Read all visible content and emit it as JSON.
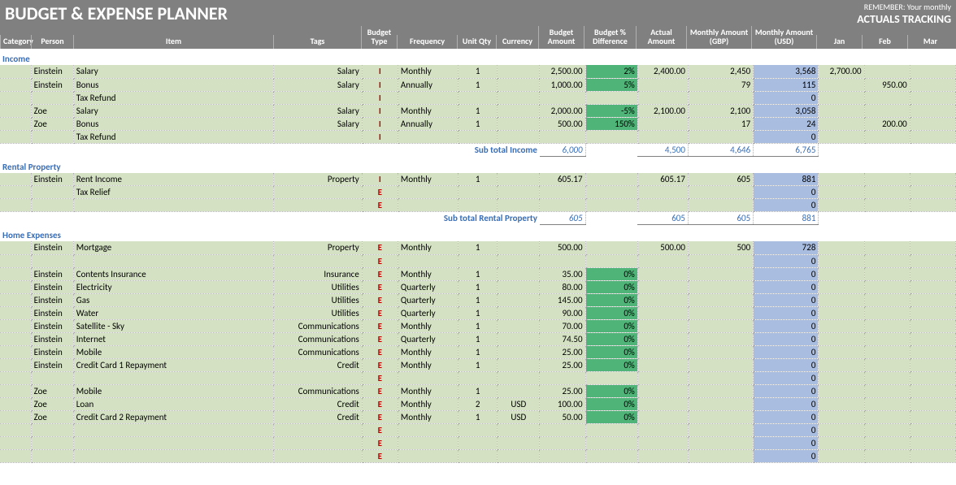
{
  "title": "BUDGET & EXPENSE PLANNER",
  "remember_line1": "REMEMBER: Your monthly",
  "remember_line2": "ACTUALS TRACKING",
  "columns": {
    "category": "Category",
    "person": "Person",
    "item": "Item",
    "tags": "Tags",
    "budget_type": "Budget Type",
    "frequency": "Frequency",
    "unit_qty": "Unit Qty",
    "currency": "Currency",
    "budget_amount": "Budget Amount",
    "budget_pct_diff": "Budget % Difference",
    "actual_amount": "Actual Amount",
    "monthly_gbp": "Monthly Amount (GBP)",
    "monthly_usd": "Monthly Amount (USD)",
    "jan": "Jan",
    "feb": "Feb",
    "mar": "Mar"
  },
  "col_widths": {
    "category": 38,
    "person": 52,
    "item": 246,
    "tags": 108,
    "budget_type": 44,
    "frequency": 74,
    "unit_qty": 48,
    "currency": 52,
    "budget_amount": 56,
    "budget_pct_diff": 64,
    "actual_amount": 62,
    "monthly_gbp": 80,
    "monthly_usd": 80,
    "jan": 56,
    "feb": 56,
    "mar": 56
  },
  "colors": {
    "header_bg": "#808080",
    "header_text": "#ffffff",
    "section_title": "#3a6fb7",
    "row_green": "#d4e2c3",
    "diff_green": "#4eb478",
    "usd_blue": "#a8bde0",
    "btype_red": "#c00000",
    "border_dotted": "#b0b0b0"
  },
  "sections": [
    {
      "title": "Income",
      "rows": [
        {
          "person": "Einstein",
          "item": "Salary",
          "tags": "Salary",
          "btype": "I",
          "freq": "Monthly",
          "qty": "1",
          "curr": "",
          "budget": "2,500.00",
          "diff": "2%",
          "actual": "2,400.00",
          "gbp": "2,450",
          "usd": "3,568",
          "jan": "2,700.00",
          "feb": "",
          "mar": ""
        },
        {
          "person": "Einstein",
          "item": "Bonus",
          "tags": "Salary",
          "btype": "I",
          "freq": "Annually",
          "qty": "1",
          "curr": "",
          "budget": "1,000.00",
          "diff": "5%",
          "actual": "",
          "gbp": "79",
          "usd": "115",
          "jan": "",
          "feb": "950.00",
          "mar": ""
        },
        {
          "person": "",
          "item": "Tax Refund",
          "tags": "",
          "btype": "I",
          "freq": "",
          "qty": "",
          "curr": "",
          "budget": "",
          "diff": "",
          "actual": "",
          "gbp": "",
          "usd": "0",
          "jan": "",
          "feb": "",
          "mar": ""
        },
        {
          "person": "Zoe",
          "item": "Salary",
          "tags": "Salary",
          "btype": "I",
          "freq": "Monthly",
          "qty": "1",
          "curr": "",
          "budget": "2,000.00",
          "diff": "-5%",
          "actual": "2,100.00",
          "gbp": "2,100",
          "usd": "3,058",
          "jan": "",
          "feb": "",
          "mar": ""
        },
        {
          "person": "Zoe",
          "item": "Bonus",
          "tags": "Salary",
          "btype": "I",
          "freq": "Annually",
          "qty": "1",
          "curr": "",
          "budget": "500.00",
          "diff": "150%",
          "actual": "",
          "gbp": "17",
          "usd": "24",
          "jan": "",
          "feb": "200.00",
          "mar": ""
        },
        {
          "person": "",
          "item": "Tax Refund",
          "tags": "",
          "btype": "I",
          "freq": "",
          "qty": "",
          "curr": "",
          "budget": "",
          "diff": "",
          "actual": "",
          "gbp": "",
          "usd": "0",
          "jan": "",
          "feb": "",
          "mar": ""
        }
      ],
      "subtotal": {
        "label": "Sub total Income",
        "budget": "6,000",
        "actual": "4,500",
        "gbp": "4,646",
        "usd": "6,765"
      }
    },
    {
      "title": "Rental Property",
      "rows": [
        {
          "person": "Einstein",
          "item": "Rent Income",
          "tags": "Property",
          "btype": "I",
          "freq": "Monthly",
          "qty": "1",
          "curr": "",
          "budget": "605.17",
          "diff": "",
          "actual": "605.17",
          "gbp": "605",
          "usd": "881",
          "jan": "",
          "feb": "",
          "mar": ""
        },
        {
          "person": "",
          "item": "Tax Relief",
          "tags": "",
          "btype": "E",
          "freq": "",
          "qty": "",
          "curr": "",
          "budget": "",
          "diff": "",
          "actual": "",
          "gbp": "",
          "usd": "0",
          "jan": "",
          "feb": "",
          "mar": ""
        },
        {
          "person": "",
          "item": "",
          "tags": "",
          "btype": "E",
          "freq": "",
          "qty": "",
          "curr": "",
          "budget": "",
          "diff": "",
          "actual": "",
          "gbp": "",
          "usd": "0",
          "jan": "",
          "feb": "",
          "mar": ""
        }
      ],
      "subtotal": {
        "label": "Sub total Rental Property",
        "budget": "605",
        "actual": "605",
        "gbp": "605",
        "usd": "881"
      }
    },
    {
      "title": "Home Expenses",
      "rows": [
        {
          "person": "Einstein",
          "item": "Mortgage",
          "tags": "Property",
          "btype": "E",
          "freq": "Monthly",
          "qty": "1",
          "curr": "",
          "budget": "500.00",
          "diff": "",
          "actual": "500.00",
          "gbp": "500",
          "usd": "728",
          "jan": "",
          "feb": "",
          "mar": ""
        },
        {
          "person": "",
          "item": "",
          "tags": "",
          "btype": "E",
          "freq": "",
          "qty": "",
          "curr": "",
          "budget": "",
          "diff": "",
          "actual": "",
          "gbp": "",
          "usd": "0",
          "jan": "",
          "feb": "",
          "mar": ""
        },
        {
          "person": "Einstein",
          "item": "Contents Insurance",
          "tags": "Insurance",
          "btype": "E",
          "freq": "Monthly",
          "qty": "1",
          "curr": "",
          "budget": "35.00",
          "diff": "0%",
          "actual": "",
          "gbp": "",
          "usd": "0",
          "jan": "",
          "feb": "",
          "mar": ""
        },
        {
          "person": "Einstein",
          "item": "Electricity",
          "tags": "Utilities",
          "btype": "E",
          "freq": "Quarterly",
          "qty": "1",
          "curr": "",
          "budget": "80.00",
          "diff": "0%",
          "actual": "",
          "gbp": "",
          "usd": "0",
          "jan": "",
          "feb": "",
          "mar": ""
        },
        {
          "person": "Einstein",
          "item": "Gas",
          "tags": "Utilities",
          "btype": "E",
          "freq": "Quarterly",
          "qty": "1",
          "curr": "",
          "budget": "145.00",
          "diff": "0%",
          "actual": "",
          "gbp": "",
          "usd": "0",
          "jan": "",
          "feb": "",
          "mar": ""
        },
        {
          "person": "Einstein",
          "item": "Water",
          "tags": "Utilities",
          "btype": "E",
          "freq": "Quarterly",
          "qty": "1",
          "curr": "",
          "budget": "90.00",
          "diff": "0%",
          "actual": "",
          "gbp": "",
          "usd": "0",
          "jan": "",
          "feb": "",
          "mar": ""
        },
        {
          "person": "Einstein",
          "item": "Satellite - Sky",
          "tags": "Communications",
          "btype": "E",
          "freq": "Monthly",
          "qty": "1",
          "curr": "",
          "budget": "70.00",
          "diff": "0%",
          "actual": "",
          "gbp": "",
          "usd": "0",
          "jan": "",
          "feb": "",
          "mar": ""
        },
        {
          "person": "Einstein",
          "item": "Internet",
          "tags": "Communications",
          "btype": "E",
          "freq": "Quarterly",
          "qty": "1",
          "curr": "",
          "budget": "74.50",
          "diff": "0%",
          "actual": "",
          "gbp": "",
          "usd": "0",
          "jan": "",
          "feb": "",
          "mar": ""
        },
        {
          "person": "Einstein",
          "item": "Mobile",
          "tags": "Communications",
          "btype": "E",
          "freq": "Monthly",
          "qty": "1",
          "curr": "",
          "budget": "25.00",
          "diff": "0%",
          "actual": "",
          "gbp": "",
          "usd": "0",
          "jan": "",
          "feb": "",
          "mar": ""
        },
        {
          "person": "Einstein",
          "item": "Credit Card 1 Repayment",
          "tags": "Credit",
          "btype": "E",
          "freq": "Monthly",
          "qty": "1",
          "curr": "",
          "budget": "25.00",
          "diff": "0%",
          "actual": "",
          "gbp": "",
          "usd": "0",
          "jan": "",
          "feb": "",
          "mar": ""
        },
        {
          "person": "",
          "item": "",
          "tags": "",
          "btype": "E",
          "freq": "",
          "qty": "",
          "curr": "",
          "budget": "",
          "diff": "",
          "actual": "",
          "gbp": "",
          "usd": "0",
          "jan": "",
          "feb": "",
          "mar": ""
        },
        {
          "person": "Zoe",
          "item": "Mobile",
          "tags": "Communications",
          "btype": "E",
          "freq": "Monthly",
          "qty": "1",
          "curr": "",
          "budget": "25.00",
          "diff": "0%",
          "actual": "",
          "gbp": "",
          "usd": "0",
          "jan": "",
          "feb": "",
          "mar": ""
        },
        {
          "person": "Zoe",
          "item": "Loan",
          "tags": "Credit",
          "btype": "E",
          "freq": "Monthly",
          "qty": "2",
          "curr": "USD",
          "budget": "100.00",
          "diff": "0%",
          "actual": "",
          "gbp": "",
          "usd": "0",
          "jan": "",
          "feb": "",
          "mar": ""
        },
        {
          "person": "Zoe",
          "item": "Credit Card 2 Repayment",
          "tags": "Credit",
          "btype": "E",
          "freq": "Monthly",
          "qty": "1",
          "curr": "USD",
          "budget": "50.00",
          "diff": "0%",
          "actual": "",
          "gbp": "",
          "usd": "0",
          "jan": "",
          "feb": "",
          "mar": ""
        },
        {
          "person": "",
          "item": "",
          "tags": "",
          "btype": "E",
          "freq": "",
          "qty": "",
          "curr": "",
          "budget": "",
          "diff": "",
          "actual": "",
          "gbp": "",
          "usd": "0",
          "jan": "",
          "feb": "",
          "mar": ""
        },
        {
          "person": "",
          "item": "",
          "tags": "",
          "btype": "E",
          "freq": "",
          "qty": "",
          "curr": "",
          "budget": "",
          "diff": "",
          "actual": "",
          "gbp": "",
          "usd": "0",
          "jan": "",
          "feb": "",
          "mar": ""
        },
        {
          "person": "",
          "item": "",
          "tags": "",
          "btype": "E",
          "freq": "",
          "qty": "",
          "curr": "",
          "budget": "",
          "diff": "",
          "actual": "",
          "gbp": "",
          "usd": "0",
          "jan": "",
          "feb": "",
          "mar": ""
        }
      ]
    }
  ]
}
